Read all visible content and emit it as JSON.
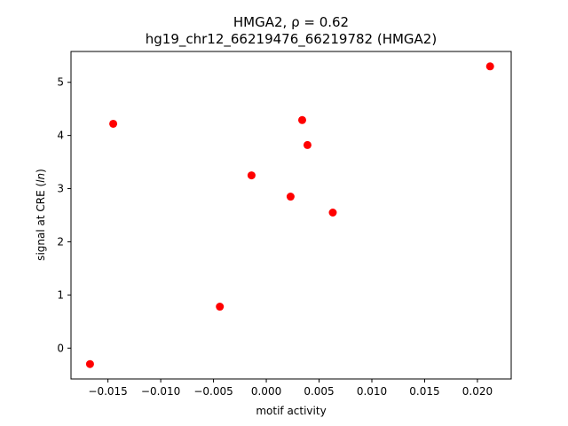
{
  "chart_data": {
    "type": "scatter",
    "title_line1": "HMGA2, ρ = 0.62",
    "title_line2": "hg19_chr12_66219476_66219782 (HMGA2)",
    "xlabel": "motif activity",
    "ylabel": "signal at CRE (ln)",
    "xlim": [
      -0.0185,
      0.0232
    ],
    "ylim": [
      -0.58,
      5.58
    ],
    "x_ticks": [
      -0.015,
      -0.01,
      -0.005,
      0.0,
      0.005,
      0.01,
      0.015,
      0.02
    ],
    "x_tick_labels": [
      "−0.015",
      "−0.010",
      "−0.005",
      "0.000",
      "0.005",
      "0.010",
      "0.015",
      "0.020"
    ],
    "y_ticks": [
      0,
      1,
      2,
      3,
      4,
      5
    ],
    "y_tick_labels": [
      "0",
      "1",
      "2",
      "3",
      "4",
      "5"
    ],
    "grid": false,
    "marker_color": "#ff0000",
    "points": [
      {
        "x": -0.0167,
        "y": -0.3
      },
      {
        "x": -0.0145,
        "y": 4.22
      },
      {
        "x": -0.0044,
        "y": 0.78
      },
      {
        "x": -0.0014,
        "y": 3.25
      },
      {
        "x": 0.0023,
        "y": 2.85
      },
      {
        "x": 0.0034,
        "y": 4.29
      },
      {
        "x": 0.0039,
        "y": 3.82
      },
      {
        "x": 0.0063,
        "y": 2.55
      },
      {
        "x": 0.0212,
        "y": 5.3
      }
    ]
  }
}
